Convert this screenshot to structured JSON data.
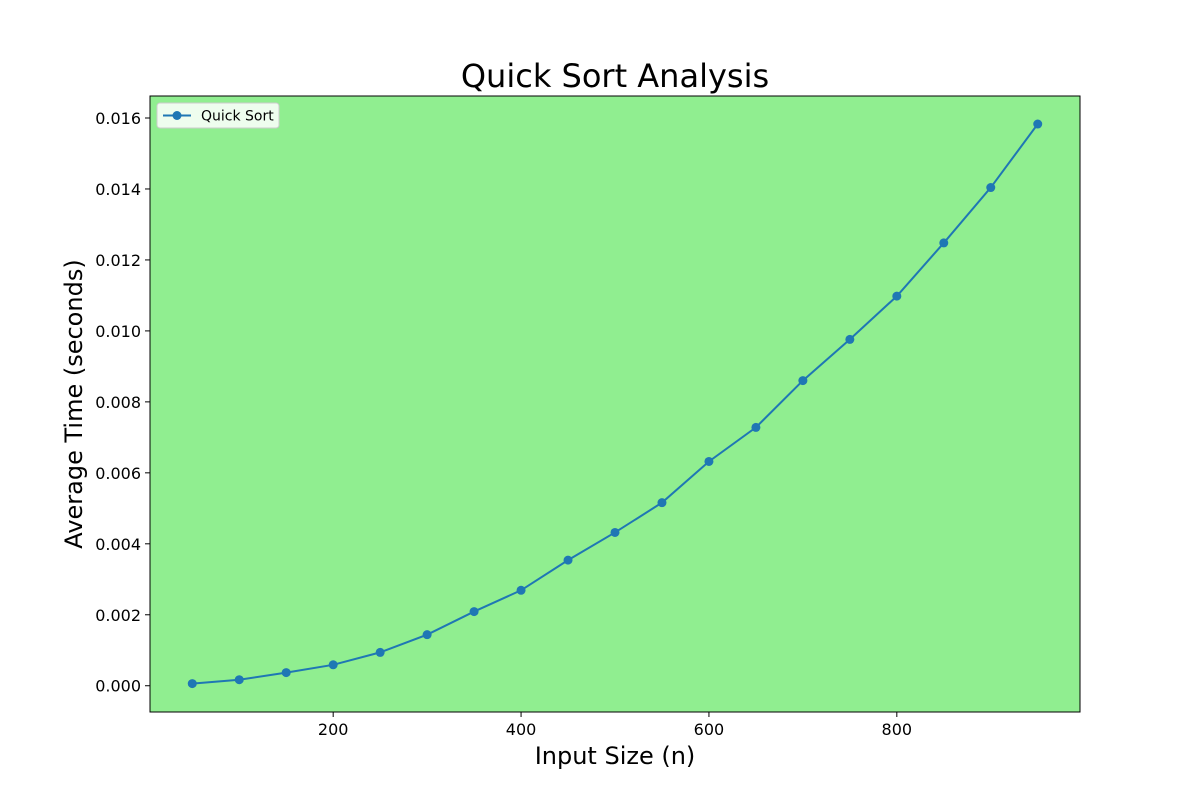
{
  "chart_data": {
    "type": "line",
    "title": "Quick Sort Analysis",
    "xlabel": "Input Size (n)",
    "ylabel": "Average Time (seconds)",
    "x": [
      50,
      100,
      150,
      200,
      250,
      300,
      350,
      400,
      450,
      500,
      550,
      600,
      650,
      700,
      750,
      800,
      850,
      900,
      950
    ],
    "series": [
      {
        "name": "Quick Sort",
        "color": "#1f77b4",
        "values": [
          6e-05,
          0.00017,
          0.00037,
          0.00059,
          0.00094,
          0.00144,
          0.00209,
          0.00269,
          0.00354,
          0.00432,
          0.00516,
          0.00632,
          0.00728,
          0.0086,
          0.00976,
          0.01098,
          0.01248,
          0.01404,
          0.01583
        ]
      }
    ],
    "xlim": [
      5,
      995
    ],
    "ylim": [
      -0.00074,
      0.01662
    ],
    "xticks": [
      200,
      400,
      600,
      800
    ],
    "xtick_labels": [
      "200",
      "400",
      "600",
      "800"
    ],
    "yticks": [
      0.0,
      0.002,
      0.004,
      0.006,
      0.008,
      0.01,
      0.012,
      0.014,
      0.016
    ],
    "ytick_labels": [
      "0.000",
      "0.002",
      "0.004",
      "0.006",
      "0.008",
      "0.010",
      "0.012",
      "0.014",
      "0.016"
    ],
    "plot_background": "#90ee90",
    "grid": false,
    "legend_position": "top-left",
    "marker": "circle"
  }
}
